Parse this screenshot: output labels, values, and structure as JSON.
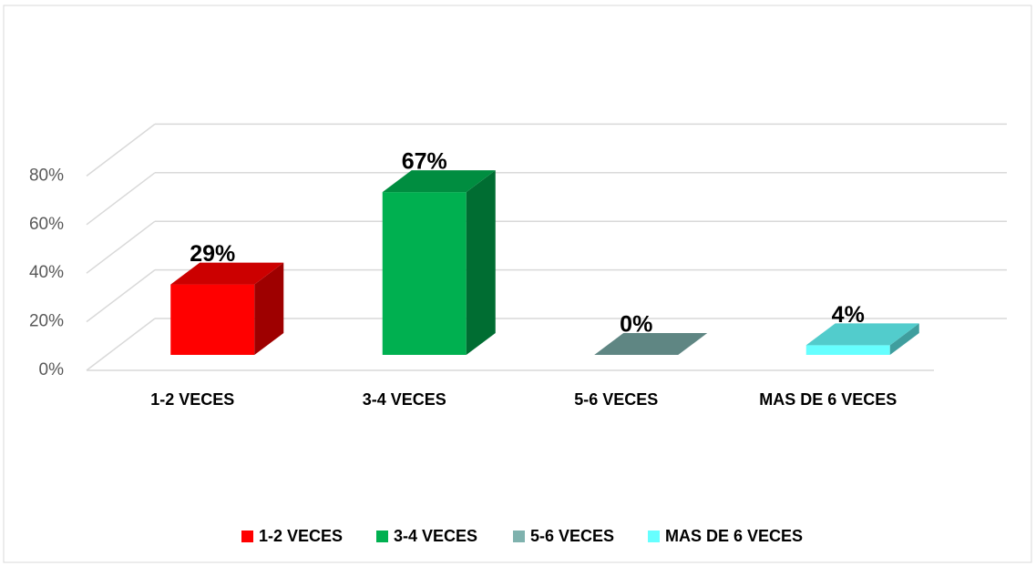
{
  "chart_data": {
    "type": "bar3d",
    "categories": [
      "1-2 VECES",
      "3-4 VECES",
      "5-6 VECES",
      "MAS DE 6 VECES"
    ],
    "values": [
      29,
      67,
      0,
      4
    ],
    "value_labels": [
      "29%",
      "67%",
      "0%",
      "4%"
    ],
    "colors": [
      "#ff0000",
      "#00b050",
      "#7fb2ae",
      "#66ffff"
    ],
    "ylim": [
      0,
      80
    ],
    "yticks": [
      {
        "value": 0,
        "label": "0%"
      },
      {
        "value": 20,
        "label": "20%"
      },
      {
        "value": 40,
        "label": "40%"
      },
      {
        "value": 60,
        "label": "60%"
      },
      {
        "value": 80,
        "label": "80%"
      }
    ],
    "grid": true,
    "legend": "bottom"
  }
}
